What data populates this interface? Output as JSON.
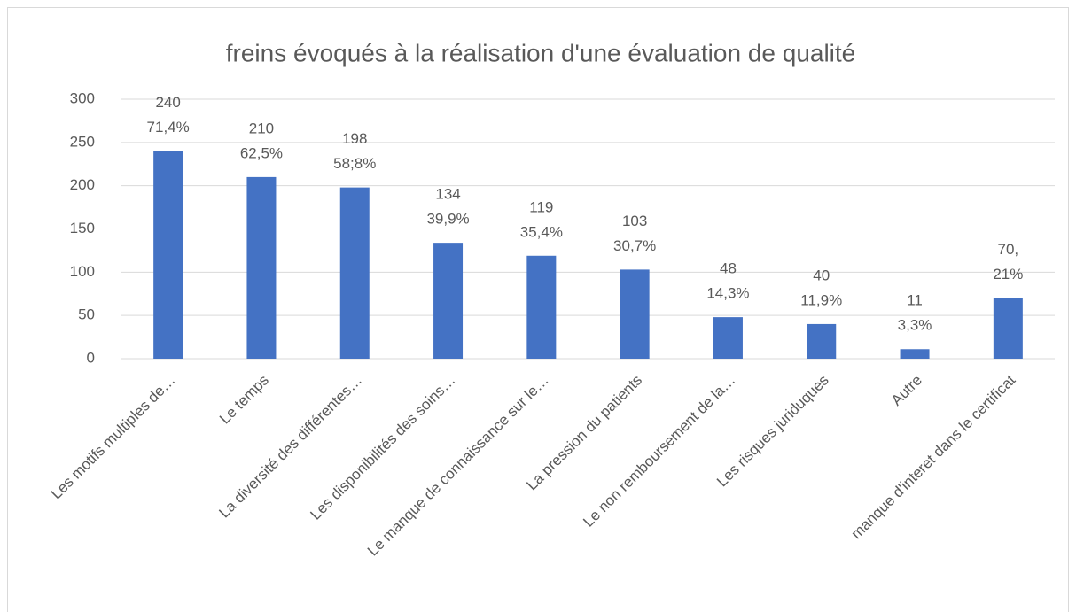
{
  "chart_data": {
    "type": "bar",
    "title": "freins évoqués à la réalisation d'une évaluation de qualité",
    "categories": [
      "Les motifs multiples de…",
      "Le temps",
      "La diversité des différentes…",
      "Les disponibilités des soins…",
      "Le manque de connaissance sur le…",
      "La pression du patients",
      "Le non remboursement de la…",
      "Les risques juriduques",
      "Autre",
      "manque d'interet dans le certificat"
    ],
    "values": [
      240,
      210,
      198,
      134,
      119,
      103,
      48,
      40,
      11,
      70
    ],
    "value_labels": [
      [
        "240",
        "71,4%"
      ],
      [
        "210",
        "62,5%"
      ],
      [
        "198",
        "58;8%"
      ],
      [
        "134",
        "39,9%"
      ],
      [
        "119",
        "35,4%"
      ],
      [
        "103",
        "30,7%"
      ],
      [
        "48",
        "14,3%"
      ],
      [
        "40",
        "11,9%"
      ],
      [
        "11",
        "3,3%"
      ],
      [
        "70,",
        "21%"
      ]
    ],
    "color": "#4472c4",
    "ylim": [
      0,
      300
    ],
    "yticks": [
      0,
      50,
      100,
      150,
      200,
      250,
      300
    ],
    "grid": true
  }
}
